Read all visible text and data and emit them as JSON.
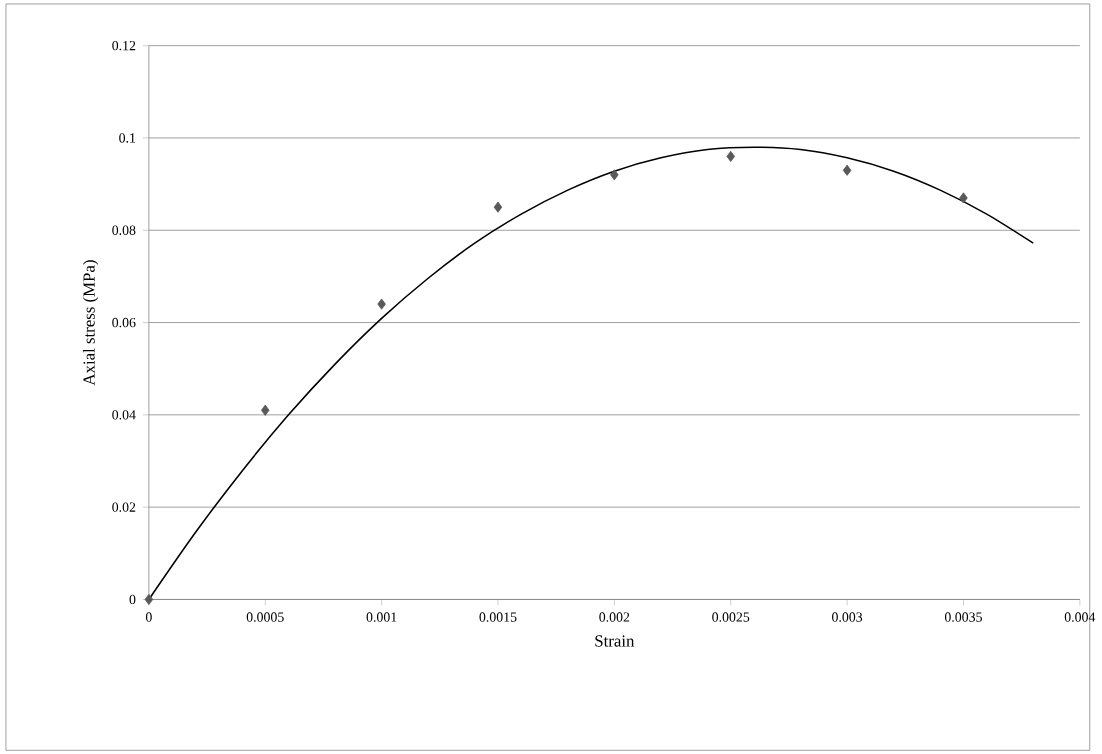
{
  "chart_data": {
    "type": "scatter",
    "xlabel": "Strain",
    "ylabel": "Axial stress (MPa)",
    "xlim": [
      0,
      0.004
    ],
    "ylim": [
      0,
      0.12
    ],
    "xticks": [
      0,
      0.0005,
      0.001,
      0.0015,
      0.002,
      0.0025,
      0.003,
      0.0035,
      0.004
    ],
    "yticks": [
      0,
      0.02,
      0.04,
      0.06,
      0.08,
      0.1,
      0.12
    ],
    "grid": "y",
    "series": [
      {
        "color": "#595959",
        "marker": "diamond",
        "x": [
          0,
          0.0005,
          0.001,
          0.0015,
          0.002,
          0.0025,
          0.003,
          0.0035
        ],
        "values": [
          0,
          0.041,
          0.064,
          0.085,
          0.092,
          0.096,
          0.093,
          0.087
        ]
      },
      {
        "type": "line",
        "color": "#000000",
        "marker": "none",
        "line_style": "solid",
        "x": [
          0,
          0.0002,
          0.0004,
          0.0006,
          0.0008,
          0.001,
          0.0012,
          0.0014,
          0.0016,
          0.0018,
          0.002,
          0.0022,
          0.0024,
          0.0026,
          0.0028,
          0.003,
          0.0032,
          0.0034,
          0.0036,
          0.0038
        ],
        "values": [
          0,
          0.0145,
          0.0278,
          0.04,
          0.051,
          0.0609,
          0.0696,
          0.0772,
          0.0835,
          0.0887,
          0.0928,
          0.0957,
          0.0975,
          0.098,
          0.0975,
          0.0957,
          0.0928,
          0.0887,
          0.0835,
          0.0772
        ]
      }
    ]
  }
}
